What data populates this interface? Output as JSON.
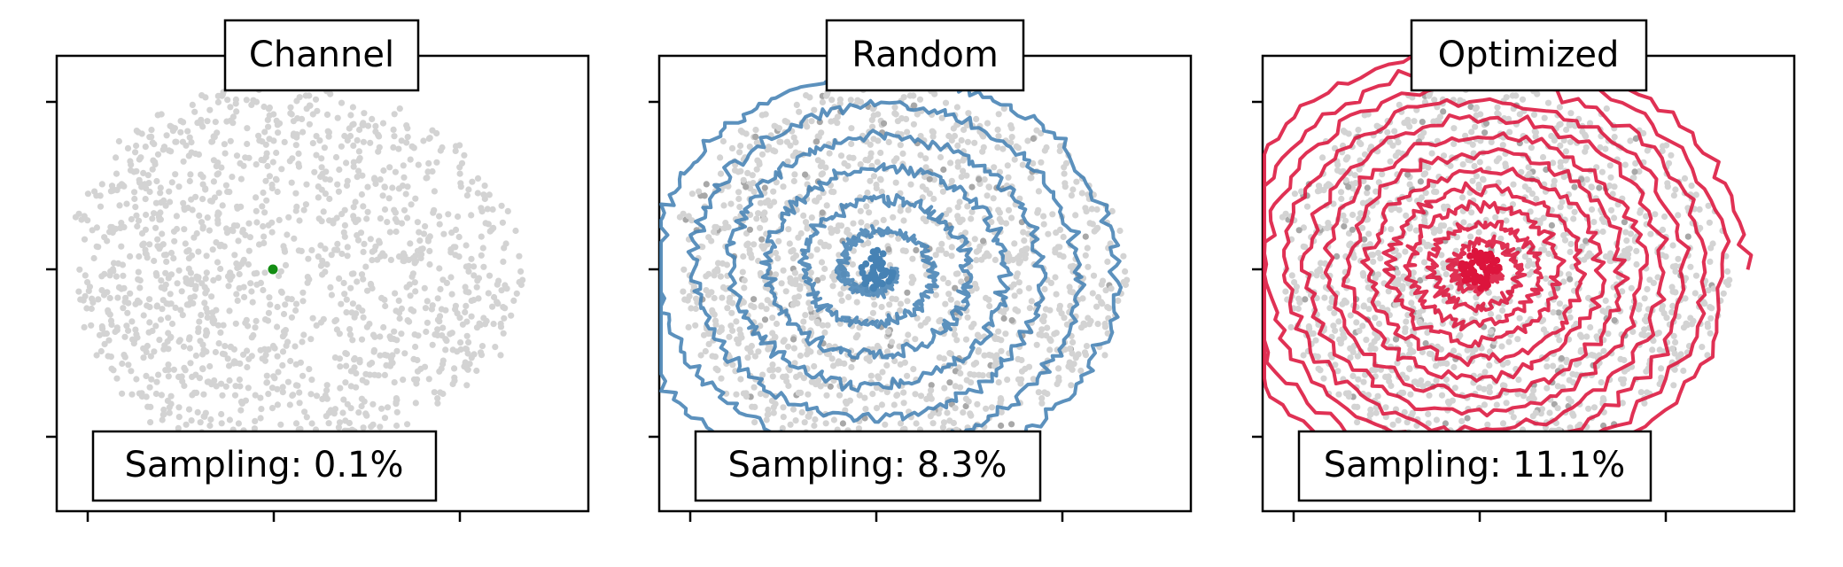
{
  "colors": {
    "background_points": "#d3d3d3",
    "channel_marker": "#138d13",
    "random_trajectory": "#4682b4",
    "optimized_trajectory": "#dc143c",
    "frame": "#000000"
  },
  "chart_data": [
    {
      "type": "scatter",
      "title": "Channel",
      "annotation": "Sampling: 0.1%",
      "trajectory": "none",
      "marker": "single-point",
      "xlim": [
        -1,
        1
      ],
      "ylim": [
        -1,
        1
      ],
      "ticks": "unlabeled",
      "grid": false
    },
    {
      "type": "line",
      "title": "Random",
      "annotation": "Sampling: 8.3%",
      "trajectory": "spiral",
      "xlim": [
        -1,
        1
      ],
      "ylim": [
        -1,
        1
      ],
      "ticks": "unlabeled",
      "grid": false
    },
    {
      "type": "line",
      "title": "Optimized",
      "annotation": "Sampling: 11.1%",
      "trajectory": "spiral",
      "xlim": [
        -1,
        1
      ],
      "ylim": [
        -1,
        1
      ],
      "ticks": "unlabeled",
      "grid": false
    }
  ]
}
